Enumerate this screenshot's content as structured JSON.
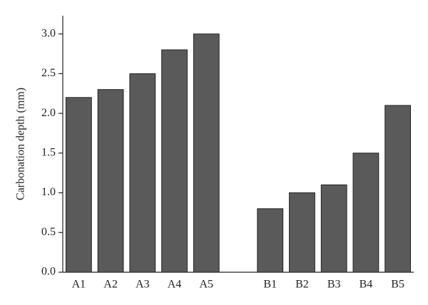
{
  "chart_data": {
    "type": "bar",
    "y_label": "Carbonation depth (mm)",
    "categories": [
      "A1",
      "A2",
      "A3",
      "A4",
      "A5",
      null,
      "B1",
      "B2",
      "B3",
      "B4",
      "B5"
    ],
    "values": [
      2.2,
      2.3,
      2.5,
      2.8,
      3.0,
      null,
      0.8,
      1.0,
      1.1,
      1.5,
      2.1
    ],
    "color": "#5a5a5a",
    "ylim": [
      0,
      3.23
    ],
    "yticks": [
      {
        "value": 0,
        "label": "0.0"
      },
      0.5,
      {
        "value": 1,
        "label": "1.0"
      },
      1.5,
      {
        "value": 2,
        "label": "2.0"
      },
      2.5,
      {
        "value": 3,
        "label": "3.0"
      }
    ]
  }
}
